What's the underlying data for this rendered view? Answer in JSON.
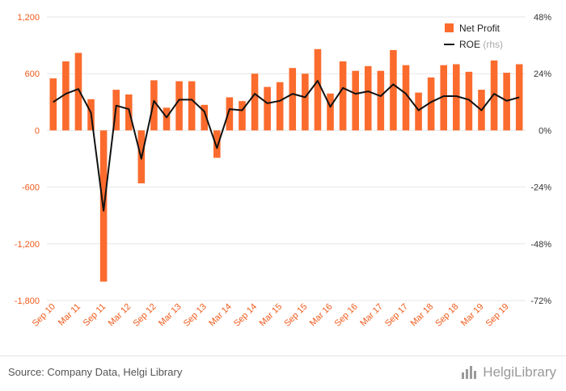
{
  "chart_data": {
    "type": "bar",
    "categories": [
      "Sep 10",
      "",
      "Mar 11",
      "",
      "Sep 11",
      "",
      "Mar 12",
      "",
      "Sep 12",
      "",
      "Mar 13",
      "",
      "Sep 13",
      "",
      "Mar 14",
      "",
      "Sep 14",
      "",
      "Mar 15",
      "",
      "Sep 15",
      "",
      "Mar 16",
      "",
      "Sep 16",
      "",
      "Mar 17",
      "",
      "Sep 17",
      "",
      "Mar 18",
      "",
      "Sep 18",
      "",
      "Mar 19",
      "",
      "Sep 19",
      ""
    ],
    "series": [
      {
        "name": "Net Profit",
        "axis": "left",
        "type": "bar",
        "values": [
          550,
          730,
          820,
          330,
          -1600,
          430,
          380,
          -560,
          530,
          240,
          520,
          520,
          270,
          -290,
          350,
          310,
          600,
          460,
          510,
          660,
          600,
          860,
          390,
          730,
          630,
          680,
          630,
          850,
          690,
          400,
          560,
          690,
          700,
          620,
          430,
          740,
          610,
          700
        ]
      },
      {
        "name": "ROE",
        "axis": "right",
        "type": "line",
        "values": [
          12,
          15.5,
          17.5,
          7.5,
          -34,
          10.5,
          9,
          -12,
          12.5,
          5.5,
          13,
          13,
          8,
          -7.5,
          9,
          8.5,
          15.5,
          11.5,
          12.5,
          15.5,
          14,
          21,
          10,
          18,
          15.5,
          16.5,
          14.5,
          19.5,
          15.5,
          8.5,
          12,
          14.5,
          14.5,
          13,
          8.5,
          15.5,
          12.5,
          14
        ]
      }
    ],
    "left_axis": {
      "ylim": [
        -1800,
        1200
      ],
      "ticks": [
        "1,200",
        "600",
        "0",
        "-600",
        "-1,200",
        "-1,800"
      ]
    },
    "right_axis": {
      "ylim": [
        -72,
        48
      ],
      "ticks": [
        "48%",
        "24%",
        "0%",
        "-24%",
        "-48%",
        "-72%"
      ]
    },
    "legend": [
      {
        "label": "Net Profit",
        "suffix": ""
      },
      {
        "label": "ROE",
        "suffix": "(rhs)"
      }
    ],
    "legend_position": "top-right",
    "grid": true,
    "colors": {
      "bar": "#fb6b2d",
      "line": "#111111",
      "left_tick": "#f05a1a",
      "grid": "#e6e6e6",
      "right_tick": "#333333",
      "x_tick": "#f05a1a",
      "suffix": "#aaaaaa"
    }
  },
  "footer": {
    "source": "Source: Company Data, Helgi Library",
    "logo": "HelgiLibrary"
  }
}
